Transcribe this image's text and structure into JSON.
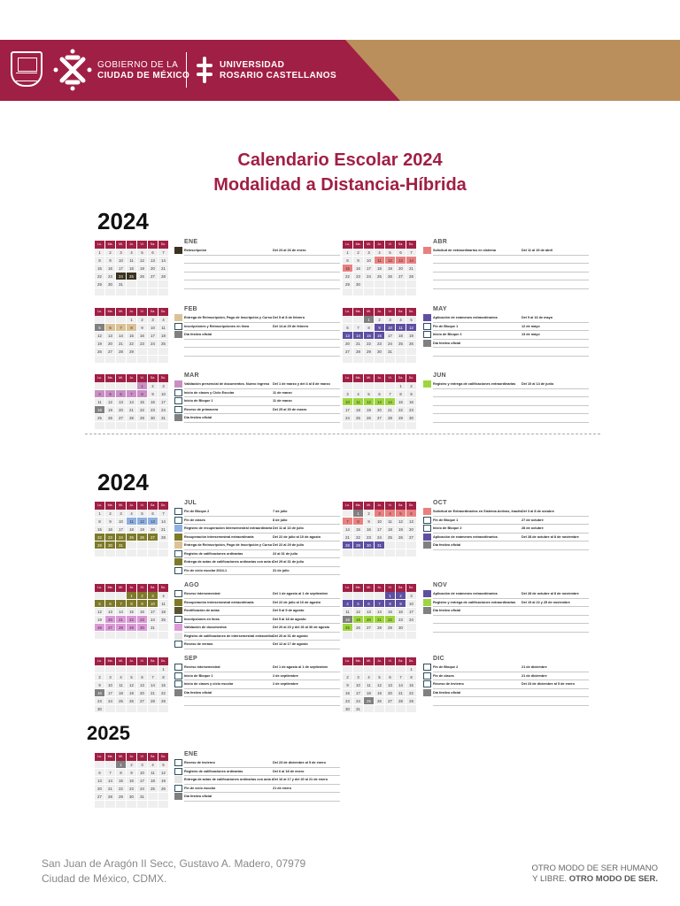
{
  "header": {
    "gov_line1": "GOBIERNO DE LA",
    "gov_line2": "CIUDAD DE MÉXICO",
    "uni_line1": "UNIVERSIDAD",
    "uni_line2": "ROSARIO CASTELLANOS",
    "colors": {
      "primary": "#a01f44",
      "accent": "#bb8f5c"
    }
  },
  "title": {
    "line1": "Calendario Escolar 2024",
    "line2": "Modalidad a Distancia-Híbrida"
  },
  "sections": [
    {
      "year": "2024"
    },
    {
      "year": "2024"
    },
    {
      "year": "2025"
    }
  ],
  "weekdays": [
    "Lu.",
    "Ma.",
    "Mi.",
    "Ju.",
    "Vi.",
    "Sa.",
    "Do."
  ],
  "months": {
    "ene24": {
      "name": "ENE",
      "events": [
        {
          "label": "Reinscripción",
          "date": "Del 23 al 26 de enero",
          "color": "#3a3320"
        }
      ]
    },
    "feb24": {
      "name": "FEB",
      "events": [
        {
          "label": "Entrega de Reinscripción, Pago de Inscripción y Curso de Inducción",
          "date": "Del 5 al 8 de febrero",
          "color": "#dcc296"
        },
        {
          "label": "Inscripciones y Reinscripciones en línea",
          "date": "Del 14 al 29 de febrero",
          "color": "#ffffff"
        },
        {
          "label": "Día festivo oficial",
          "date": "",
          "color": "#808080"
        }
      ]
    },
    "mar24": {
      "name": "MAR",
      "events": [
        {
          "label": "Validación presencial de documentos. Nuevo ingreso",
          "date": "Del 1 de marzo y del 4 al 8 de marzo",
          "color": "#c98fc4"
        },
        {
          "label": "Inicio de clases y Ciclo Escolar",
          "date": "11 de marzo",
          "color": "#ffffff"
        },
        {
          "label": "Inicio de Bloque 1",
          "date": "11 de marzo",
          "color": "#ffffff"
        },
        {
          "label": "Receso de primavera",
          "date": "Del 25 al 30 de marzo",
          "color": "#ffffff"
        },
        {
          "label": "Día festivo oficial",
          "date": "",
          "color": "#808080"
        }
      ]
    },
    "abr24": {
      "name": "ABR",
      "events": [
        {
          "label": "Solicitud de extraordinarios en sistema",
          "date": "Del 11 al 15 de abril",
          "color": "#e98080"
        }
      ]
    },
    "may24": {
      "name": "MAY",
      "events": [
        {
          "label": "Aplicación de exámenes extraordinarios",
          "date": "Del 9 al 16 de mayo",
          "color": "#5e4fa2"
        },
        {
          "label": "Fin de Bloque 1",
          "date": "12 de mayo",
          "color": "#ffffff"
        },
        {
          "label": "Inicio de Bloque 2",
          "date": "13 de mayo",
          "color": "#ffffff"
        },
        {
          "label": "Día festivo oficial",
          "date": "",
          "color": "#808080"
        }
      ]
    },
    "jun24": {
      "name": "JUN",
      "events": [
        {
          "label": "Registro y entrega de calificaciones extraordinarias",
          "date": "Del 10 al 14 de junio",
          "color": "#9ed63f"
        }
      ]
    },
    "jul24": {
      "name": "JUL",
      "events": [
        {
          "label": "Fin de Bloque 2",
          "date": "7 de julio",
          "color": "#ffffff"
        },
        {
          "label": "Fin de clases",
          "date": "8 de julio",
          "color": "#ffffff"
        },
        {
          "label": "Registro de recuperación intersemestral extraordinaria",
          "date": "Del 11 al 13 de julio",
          "color": "#8eb0e0"
        },
        {
          "label": "Recuperación intersemestral extraordinaria",
          "date": "Del 22 de julio al 10 de agosto",
          "color": "#7e7a2a"
        },
        {
          "label": "Entrega de Reinscripción, Pago de Inscripción y Curso de Inducción",
          "date": "Del 22 al 29 de julio",
          "color": "#dcc296"
        },
        {
          "label": "Registro de calificaciones ordinarias",
          "date": "22 al 31 de julio",
          "color": "#ffffff"
        },
        {
          "label": "Entrega de actas de calificaciones ordinarias con acta de sistema",
          "date": "Del 29 al 31 de julio",
          "color": "#7e7a2a"
        },
        {
          "label": "Fin de ciclo escolar 2024-1",
          "date": "31 de julio",
          "color": "#ffffff"
        }
      ]
    },
    "ago24": {
      "name": "AGO",
      "events": [
        {
          "label": "Receso intersemestral",
          "date": "Del 1 de agosto al 1 de septiembre",
          "color": "#ffffff"
        },
        {
          "label": "Recuperación intersemestral extraordinaria",
          "date": "Del 22 de julio al 10 de agosto",
          "color": "#7e7a2a"
        },
        {
          "label": "Rectificación de actas",
          "date": "Del 5 al 9 de agosto",
          "color": "#5a5530"
        },
        {
          "label": "Inscripciones en línea",
          "date": "Del 5 al 18 de agosto",
          "color": "#ffffff"
        },
        {
          "label": "Validación de documentos",
          "date": "Del 20 al 23 y del 26 al 30 de agosto",
          "color": "#dc9ad8"
        },
        {
          "label": "Registro de calificaciones de intersemestral extraordinaria",
          "date": "Del 26 al 31 de agosto",
          "color": "#e6e6e6"
        },
        {
          "label": "Receso de verano",
          "date": "Del 12 al 17 de agosto",
          "color": "#ffffff"
        }
      ]
    },
    "sep24": {
      "name": "SEP",
      "events": [
        {
          "label": "Receso intersemestral",
          "date": "Del 1 de agosto al 1 de septiembre",
          "color": "#ffffff"
        },
        {
          "label": "Inicio de Bloque 1",
          "date": "2 de septiembre",
          "color": "#ffffff"
        },
        {
          "label": "Inicio de clases y ciclo escolar",
          "date": "2 de septiembre",
          "color": "#ffffff"
        },
        {
          "label": "Día festivo oficial",
          "date": "",
          "color": "#808080"
        }
      ]
    },
    "oct24": {
      "name": "OCT",
      "events": [
        {
          "label": "Solicitud de Extraordinarios en Sistema Activos, Inactivos y Egresados",
          "date": "Del 3 al 8 de octubre",
          "color": "#e98080"
        },
        {
          "label": "Fin de Bloque 1",
          "date": "27 de octubre",
          "color": "#ffffff"
        },
        {
          "label": "Inicio de Bloque 2",
          "date": "28 de octubre",
          "color": "#ffffff"
        },
        {
          "label": "Aplicación de exámenes extraordinarios",
          "date": "Del 28 de octubre al 8 de noviembre",
          "color": "#5e4fa2"
        },
        {
          "label": "Día festivo oficial",
          "date": "",
          "color": "#808080"
        }
      ]
    },
    "nov24": {
      "name": "NOV",
      "events": [
        {
          "label": "Aplicación de exámenes extraordinarios",
          "date": "Del 28 de octubre al 8 de noviembre",
          "color": "#5e4fa2"
        },
        {
          "label": "Registro y entrega de calificaciones extraordinarias",
          "date": "Del 19 al 22 y 25 de noviembre",
          "color": "#9ed63f"
        },
        {
          "label": "Día festivo oficial",
          "date": "",
          "color": "#808080"
        }
      ]
    },
    "dic24": {
      "name": "DIC",
      "events": [
        {
          "label": "Fin de Bloque 2",
          "date": "21 de diciembre",
          "color": "#ffffff"
        },
        {
          "label": "Fin de clases",
          "date": "21 de diciembre",
          "color": "#ffffff"
        },
        {
          "label": "Receso de invierno",
          "date": "Del 23 de diciembre al 5 de enero",
          "color": "#ffffff"
        },
        {
          "label": "Día festivo oficial",
          "date": "",
          "color": "#808080"
        }
      ]
    },
    "ene25": {
      "name": "ENE",
      "events": [
        {
          "label": "Receso de invierno",
          "date": "Del 23 de diciembre al 5 de enero",
          "color": "#ffffff"
        },
        {
          "label": "Registro de calificaciones ordinarias",
          "date": "Del 6 al 18 de enero",
          "color": "#ffffff"
        },
        {
          "label": "Entrega de actas de calificaciones ordinarias con acta de sistema",
          "date": "Del 16 al 17 y del 20 al 21 de enero",
          "color": "#e6e6e6"
        },
        {
          "label": "Fin de ciclo escolar",
          "date": "21 de enero",
          "color": "#ffffff"
        },
        {
          "label": "Día festivo oficial",
          "date": "",
          "color": "#808080"
        }
      ]
    }
  },
  "footer": {
    "address_line1": "San Juan de Aragón II Secc, Gustavo A. Madero, 07979",
    "address_line2": "Ciudad de México, CDMX.",
    "slogan_line1": "OTRO MODO DE SER HUMANO",
    "slogan_line2a": "Y LIBRE. ",
    "slogan_line2b": "OTRO MODO DE SER."
  }
}
